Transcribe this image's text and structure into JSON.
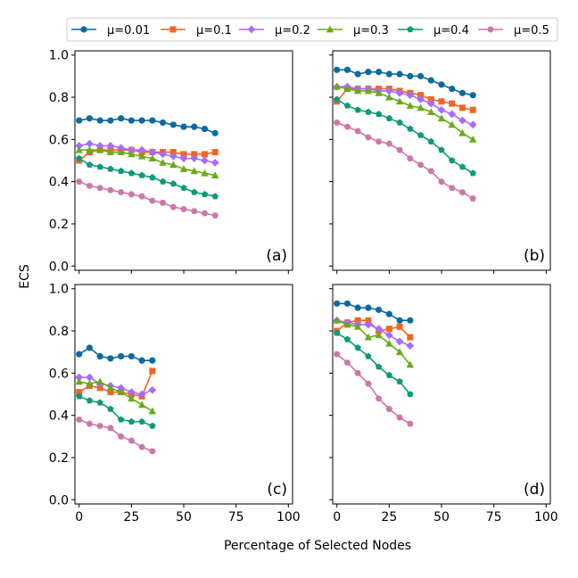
{
  "chart_data": {
    "type": "line",
    "xlabel": "Percentage of Selected Nodes",
    "ylabel": "ECS",
    "xlim": [
      -2,
      102
    ],
    "ylim": [
      -0.02,
      1.02
    ],
    "xticks": [
      0,
      25,
      50,
      75,
      100
    ],
    "yticks": [
      0.0,
      0.2,
      0.4,
      0.6,
      0.8,
      1.0
    ],
    "legend_position": "top-center",
    "grid": false,
    "series_styles": [
      {
        "name": "μ=0.01",
        "color": "#0a6aa1",
        "marker": "circle"
      },
      {
        "name": "μ=0.1",
        "color": "#f26522",
        "marker": "square"
      },
      {
        "name": "μ=0.2",
        "color": "#a66cff",
        "marker": "diamond"
      },
      {
        "name": "μ=0.3",
        "color": "#6aaa1a",
        "marker": "triangle"
      },
      {
        "name": "μ=0.4",
        "color": "#0b9b77",
        "marker": "pentagon"
      },
      {
        "name": "μ=0.5",
        "color": "#cc77aa",
        "marker": "hexagon"
      }
    ],
    "panels": [
      {
        "label": "(a)",
        "x": [
          0,
          5,
          10,
          15,
          20,
          25,
          30,
          35,
          40,
          45,
          50,
          55,
          60,
          65
        ],
        "series": [
          {
            "name": "μ=0.01",
            "values": [
              0.69,
              0.7,
              0.69,
              0.69,
              0.7,
              0.69,
              0.69,
              0.69,
              0.68,
              0.67,
              0.66,
              0.66,
              0.65,
              0.63
            ]
          },
          {
            "name": "μ=0.1",
            "values": [
              0.5,
              0.54,
              0.55,
              0.55,
              0.55,
              0.55,
              0.54,
              0.54,
              0.54,
              0.54,
              0.53,
              0.53,
              0.53,
              0.54
            ]
          },
          {
            "name": "μ=0.2",
            "values": [
              0.57,
              0.58,
              0.57,
              0.57,
              0.56,
              0.55,
              0.55,
              0.54,
              0.53,
              0.52,
              0.51,
              0.51,
              0.5,
              0.49
            ]
          },
          {
            "name": "μ=0.3",
            "values": [
              0.55,
              0.55,
              0.55,
              0.54,
              0.54,
              0.53,
              0.52,
              0.51,
              0.49,
              0.48,
              0.46,
              0.45,
              0.44,
              0.43
            ]
          },
          {
            "name": "μ=0.4",
            "values": [
              0.51,
              0.48,
              0.47,
              0.46,
              0.45,
              0.44,
              0.43,
              0.42,
              0.4,
              0.39,
              0.37,
              0.35,
              0.34,
              0.33
            ]
          },
          {
            "name": "μ=0.5",
            "values": [
              0.4,
              0.38,
              0.37,
              0.36,
              0.35,
              0.34,
              0.33,
              0.31,
              0.3,
              0.28,
              0.27,
              0.26,
              0.25,
              0.24
            ]
          }
        ]
      },
      {
        "label": "(b)",
        "x": [
          0,
          5,
          10,
          15,
          20,
          25,
          30,
          35,
          40,
          45,
          50,
          55,
          60,
          65
        ],
        "series": [
          {
            "name": "μ=0.01",
            "values": [
              0.93,
              0.93,
              0.91,
              0.92,
              0.92,
              0.91,
              0.91,
              0.9,
              0.9,
              0.88,
              0.86,
              0.84,
              0.82,
              0.81
            ]
          },
          {
            "name": "μ=0.1",
            "values": [
              0.78,
              0.84,
              0.84,
              0.84,
              0.84,
              0.84,
              0.83,
              0.82,
              0.81,
              0.79,
              0.78,
              0.77,
              0.75,
              0.74
            ]
          },
          {
            "name": "μ=0.2",
            "values": [
              0.85,
              0.85,
              0.84,
              0.84,
              0.83,
              0.83,
              0.82,
              0.81,
              0.79,
              0.77,
              0.74,
              0.72,
              0.69,
              0.67
            ]
          },
          {
            "name": "μ=0.3",
            "values": [
              0.85,
              0.84,
              0.83,
              0.83,
              0.82,
              0.8,
              0.78,
              0.76,
              0.75,
              0.73,
              0.7,
              0.67,
              0.63,
              0.6
            ]
          },
          {
            "name": "μ=0.4",
            "values": [
              0.79,
              0.76,
              0.74,
              0.73,
              0.72,
              0.7,
              0.68,
              0.65,
              0.62,
              0.59,
              0.55,
              0.5,
              0.47,
              0.44
            ]
          },
          {
            "name": "μ=0.5",
            "values": [
              0.68,
              0.66,
              0.64,
              0.61,
              0.59,
              0.58,
              0.55,
              0.51,
              0.48,
              0.45,
              0.4,
              0.37,
              0.35,
              0.32
            ]
          }
        ]
      },
      {
        "label": "(c)",
        "x": [
          0,
          5,
          10,
          15,
          20,
          25,
          30,
          35
        ],
        "series": [
          {
            "name": "μ=0.01",
            "values": [
              0.69,
              0.72,
              0.68,
              0.67,
              0.68,
              0.68,
              0.66,
              0.66
            ]
          },
          {
            "name": "μ=0.1",
            "values": [
              0.51,
              0.54,
              0.53,
              0.51,
              0.51,
              0.5,
              0.49,
              0.61
            ]
          },
          {
            "name": "μ=0.2",
            "values": [
              0.58,
              0.58,
              0.55,
              0.54,
              0.53,
              0.51,
              0.5,
              0.52
            ]
          },
          {
            "name": "μ=0.3",
            "values": [
              0.56,
              0.55,
              0.56,
              0.53,
              0.51,
              0.48,
              0.45,
              0.42
            ]
          },
          {
            "name": "μ=0.4",
            "values": [
              0.49,
              0.47,
              0.46,
              0.43,
              0.38,
              0.37,
              0.37,
              0.35
            ]
          },
          {
            "name": "μ=0.5",
            "values": [
              0.38,
              0.36,
              0.35,
              0.34,
              0.3,
              0.28,
              0.25,
              0.23
            ]
          }
        ]
      },
      {
        "label": "(d)",
        "x": [
          0,
          5,
          10,
          15,
          20,
          25,
          30,
          35
        ],
        "series": [
          {
            "name": "μ=0.01",
            "values": [
              0.93,
              0.93,
              0.91,
              0.91,
              0.9,
              0.88,
              0.85,
              0.85
            ]
          },
          {
            "name": "μ=0.1",
            "values": [
              0.8,
              0.84,
              0.85,
              0.85,
              0.8,
              0.81,
              0.82,
              0.77
            ]
          },
          {
            "name": "μ=0.2",
            "values": [
              0.85,
              0.84,
              0.83,
              0.83,
              0.81,
              0.78,
              0.75,
              0.73
            ]
          },
          {
            "name": "μ=0.3",
            "values": [
              0.85,
              0.83,
              0.82,
              0.77,
              0.78,
              0.74,
              0.7,
              0.64
            ]
          },
          {
            "name": "μ=0.4",
            "values": [
              0.79,
              0.76,
              0.72,
              0.68,
              0.63,
              0.59,
              0.56,
              0.5
            ]
          },
          {
            "name": "μ=0.5",
            "values": [
              0.69,
              0.65,
              0.6,
              0.55,
              0.48,
              0.43,
              0.39,
              0.36
            ]
          }
        ]
      }
    ]
  }
}
